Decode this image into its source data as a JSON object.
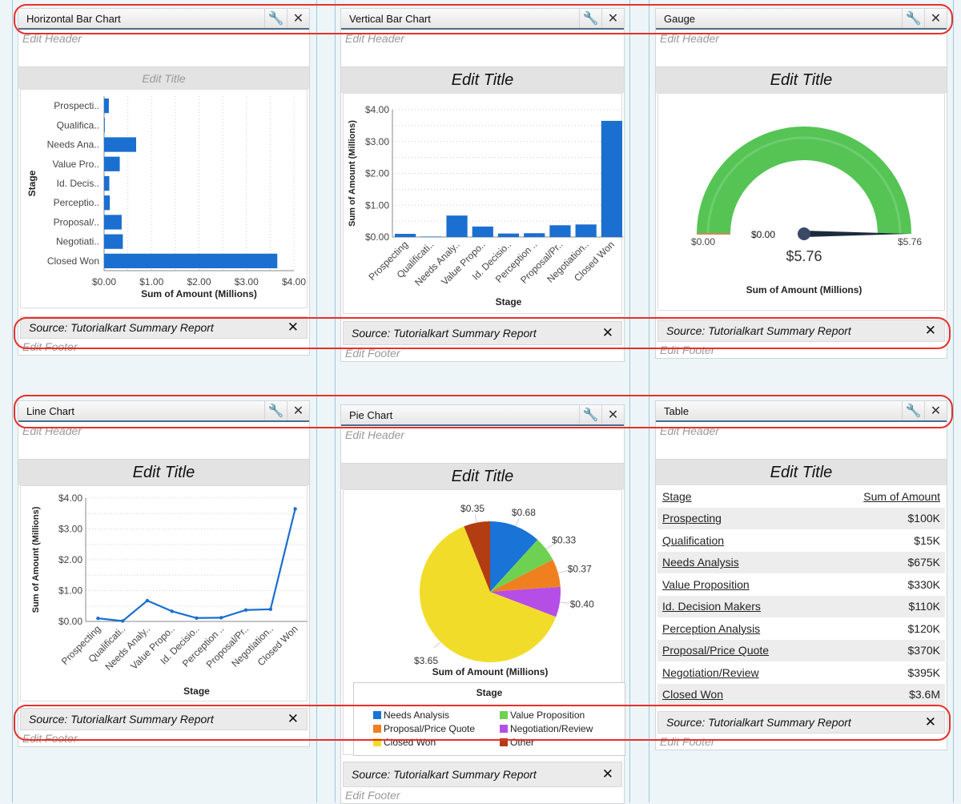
{
  "common": {
    "edit_header": "Edit Header",
    "edit_title": "Edit Title",
    "edit_footer": "Edit Footer",
    "source": "Source: Tutorialkart Summary Report",
    "wrench_icon": "wrench-icon",
    "close_icon": "close-icon"
  },
  "panels": {
    "hbar": {
      "title": "Horizontal Bar Chart"
    },
    "vbar": {
      "title": "Vertical Bar Chart"
    },
    "gauge": {
      "title": "Gauge"
    },
    "line": {
      "title": "Line Chart"
    },
    "pie": {
      "title": "Pie Chart"
    },
    "table": {
      "title": "Table"
    }
  },
  "colors": {
    "bar": "#1a6fd0",
    "gauge": "#55c455",
    "annotation": "#e8302a"
  },
  "chart_data": [
    {
      "type": "bar",
      "orientation": "horizontal",
      "categories": [
        "Prospecti..",
        "Qualifica..",
        "Needs Ana..",
        "Value Pro..",
        "Id. Decis..",
        "Perceptio..",
        "Proposal/..",
        "Negotiati..",
        "Closed Won"
      ],
      "values": [
        0.1,
        0.015,
        0.675,
        0.33,
        0.11,
        0.12,
        0.37,
        0.395,
        3.65
      ],
      "xlabel": "Sum of Amount (Millions)",
      "ylabel": "Stage",
      "xlim": [
        0,
        4
      ],
      "ticks": [
        "$0.00",
        "$1.00",
        "$2.00",
        "$3.00",
        "$4.00"
      ],
      "grid": true
    },
    {
      "type": "bar",
      "orientation": "vertical",
      "categories": [
        "Prospecting",
        "Qualificati..",
        "Needs Analy..",
        "Value Propo..",
        "Id. Decisio..",
        "Perception ..",
        "Proposal/Pr..",
        "Negotiation..",
        "Closed Won"
      ],
      "values": [
        0.1,
        0.015,
        0.675,
        0.33,
        0.11,
        0.12,
        0.37,
        0.395,
        3.65
      ],
      "xlabel": "Stage",
      "ylabel": "Sum of Amount (Millions)",
      "ylim": [
        0,
        4
      ],
      "ticks": [
        "$0.00",
        "$1.00",
        "$2.00",
        "$3.00",
        "$4.00"
      ],
      "grid": true
    },
    {
      "type": "gauge",
      "min": 0,
      "max": 5.76,
      "value": 5.76,
      "min_label": "$0.00",
      "max_label": "$5.76",
      "marker_label": "$0.00",
      "value_label": "$5.76",
      "label": "Sum of Amount (Millions)"
    },
    {
      "type": "line",
      "categories": [
        "Prospecting",
        "Qualificati..",
        "Needs Analy..",
        "Value Propo..",
        "Id. Decisio..",
        "Perception ..",
        "Proposal/Pr..",
        "Negotiation..",
        "Closed Won"
      ],
      "values": [
        0.1,
        0.015,
        0.675,
        0.33,
        0.11,
        0.12,
        0.37,
        0.395,
        3.65
      ],
      "xlabel": "Stage",
      "ylabel": "Sum of Amount (Millions)",
      "ylim": [
        0,
        4
      ],
      "ticks": [
        "$0.00",
        "$1.00",
        "$2.00",
        "$3.00",
        "$4.00"
      ],
      "grid": true
    },
    {
      "type": "pie",
      "label": "Sum of Amount (Millions)",
      "legend_title": "Stage",
      "legend_position": "bottom",
      "slices": [
        {
          "name": "Needs Analysis",
          "value": 0.68,
          "label": "$0.68",
          "color": "#1a73d6"
        },
        {
          "name": "Value Proposition",
          "value": 0.33,
          "label": "$0.33",
          "color": "#6fd152"
        },
        {
          "name": "Proposal/Price Quote",
          "value": 0.37,
          "label": "$0.37",
          "color": "#f07f1f"
        },
        {
          "name": "Negotiation/Review",
          "value": 0.4,
          "label": "$0.40",
          "color": "#b54ee6"
        },
        {
          "name": "Closed Won",
          "value": 3.65,
          "label": "$3.65",
          "color": "#f2dc2a"
        },
        {
          "name": "Other",
          "value": 0.35,
          "label": "$0.35",
          "color": "#b23d12"
        }
      ]
    },
    {
      "type": "table",
      "columns": [
        "Stage",
        "Sum of Amount"
      ],
      "rows": [
        [
          "Prospecting",
          "$100K"
        ],
        [
          "Qualification",
          "$15K"
        ],
        [
          "Needs Analysis",
          "$675K"
        ],
        [
          "Value Proposition",
          "$330K"
        ],
        [
          "Id. Decision Makers",
          "$110K"
        ],
        [
          "Perception Analysis",
          "$120K"
        ],
        [
          "Proposal/Price Quote",
          "$370K"
        ],
        [
          "Negotiation/Review",
          "$395K"
        ],
        [
          "Closed Won",
          "$3.6M"
        ]
      ]
    }
  ]
}
